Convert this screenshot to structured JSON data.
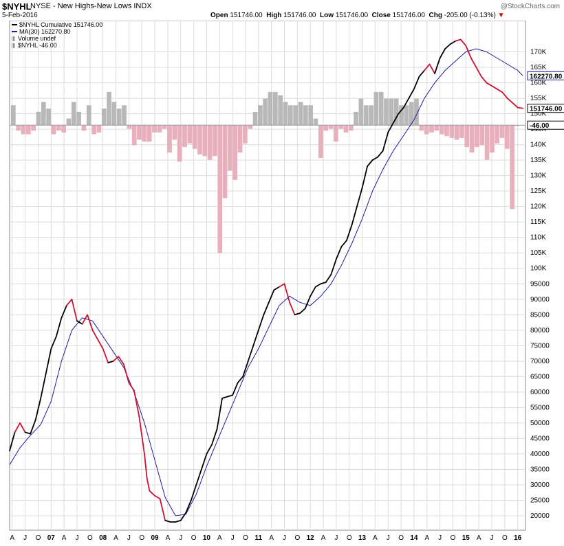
{
  "header": {
    "symbol": "$NYHL",
    "description": "NYSE - New Highs-New Lows INDX",
    "date": "5-Feb-2016",
    "open_label": "Open",
    "open": "151746.00",
    "high_label": "High",
    "high": "151746.00",
    "low_label": "Low",
    "low": "151746.00",
    "close_label": "Close",
    "close": "151746.00",
    "chg_label": "Chg",
    "chg": "-205.00 (-0.13%)",
    "chg_arrow": "▼",
    "brand": "@StockCharts.com"
  },
  "legend": {
    "cumulative": "$NYHL Cumulative 151746.00",
    "ma": "MA(30) 162270.80",
    "volume": "Volume undef",
    "nyhl": "$NYHL -46.00"
  },
  "colors": {
    "up": "#000000",
    "down": "#cc1133",
    "ma": "#1a1aa0",
    "hist_pos": "#b8b8b8",
    "hist_neg": "#e8b0bc",
    "grid": "#dcdcdc"
  },
  "chart_data": {
    "type": "line",
    "xlabel": "",
    "ylabel": "",
    "ylim": [
      18000,
      177000
    ],
    "y_ticks": [
      20000,
      25000,
      30000,
      35000,
      40000,
      45000,
      50000,
      55000,
      60000,
      65000,
      70000,
      75000,
      80000,
      85000,
      90000,
      95000,
      100000,
      105000,
      110000,
      115000,
      120000,
      125000,
      130000,
      135000,
      140000,
      145000,
      150000,
      155000,
      160000,
      165000,
      170000
    ],
    "y_tick_labels": [
      "20000",
      "25000",
      "30000",
      "35000",
      "40000",
      "45000",
      "50000",
      "55000",
      "60000",
      "65000",
      "70000",
      "75000",
      "80000",
      "85000",
      "90000",
      "95000",
      "100K",
      "105K",
      "110K",
      "115K",
      "120K",
      "125K",
      "130K",
      "135K",
      "140K",
      "145K",
      "150K",
      "155K",
      "160K",
      "165K",
      "170K"
    ],
    "x_range": [
      2006.2,
      2016.15
    ],
    "x_ticks": [
      {
        "t": 2006.25,
        "label": "A"
      },
      {
        "t": 2006.5,
        "label": "J"
      },
      {
        "t": 2006.75,
        "label": "O"
      },
      {
        "t": 2007.0,
        "label": "07"
      },
      {
        "t": 2007.25,
        "label": "A"
      },
      {
        "t": 2007.5,
        "label": "J"
      },
      {
        "t": 2007.75,
        "label": "O"
      },
      {
        "t": 2008.0,
        "label": "08"
      },
      {
        "t": 2008.25,
        "label": "A"
      },
      {
        "t": 2008.5,
        "label": "J"
      },
      {
        "t": 2008.75,
        "label": "O"
      },
      {
        "t": 2009.0,
        "label": "09"
      },
      {
        "t": 2009.25,
        "label": "A"
      },
      {
        "t": 2009.5,
        "label": "J"
      },
      {
        "t": 2009.75,
        "label": "O"
      },
      {
        "t": 2010.0,
        "label": "10"
      },
      {
        "t": 2010.25,
        "label": "A"
      },
      {
        "t": 2010.5,
        "label": "J"
      },
      {
        "t": 2010.75,
        "label": "O"
      },
      {
        "t": 2011.0,
        "label": "11"
      },
      {
        "t": 2011.25,
        "label": "A"
      },
      {
        "t": 2011.5,
        "label": "J"
      },
      {
        "t": 2011.75,
        "label": "O"
      },
      {
        "t": 2012.0,
        "label": "12"
      },
      {
        "t": 2012.25,
        "label": "A"
      },
      {
        "t": 2012.5,
        "label": "J"
      },
      {
        "t": 2012.75,
        "label": "O"
      },
      {
        "t": 2013.0,
        "label": "13"
      },
      {
        "t": 2013.25,
        "label": "A"
      },
      {
        "t": 2013.5,
        "label": "J"
      },
      {
        "t": 2013.75,
        "label": "O"
      },
      {
        "t": 2014.0,
        "label": "14"
      },
      {
        "t": 2014.25,
        "label": "A"
      },
      {
        "t": 2014.5,
        "label": "J"
      },
      {
        "t": 2014.75,
        "label": "O"
      },
      {
        "t": 2015.0,
        "label": "15"
      },
      {
        "t": 2015.25,
        "label": "A"
      },
      {
        "t": 2015.5,
        "label": "J"
      },
      {
        "t": 2015.75,
        "label": "O"
      },
      {
        "t": 2016.0,
        "label": "16"
      }
    ],
    "series": [
      {
        "name": "$NYHL Cumulative",
        "points": [
          [
            2006.2,
            41000,
            "u"
          ],
          [
            2006.3,
            47000,
            "u"
          ],
          [
            2006.4,
            50000,
            "d"
          ],
          [
            2006.5,
            47000,
            "d"
          ],
          [
            2006.6,
            46500,
            "u"
          ],
          [
            2006.7,
            51000,
            "u"
          ],
          [
            2006.8,
            58000,
            "u"
          ],
          [
            2006.9,
            66000,
            "u"
          ],
          [
            2007.0,
            74000,
            "u"
          ],
          [
            2007.1,
            78000,
            "u"
          ],
          [
            2007.2,
            84000,
            "u"
          ],
          [
            2007.3,
            88000,
            "u"
          ],
          [
            2007.4,
            90000,
            "d"
          ],
          [
            2007.5,
            83000,
            "d"
          ],
          [
            2007.6,
            82000,
            "u"
          ],
          [
            2007.7,
            85000,
            "d"
          ],
          [
            2007.8,
            80000,
            "d"
          ],
          [
            2007.9,
            77000,
            "d"
          ],
          [
            2008.0,
            74000,
            "d"
          ],
          [
            2008.1,
            69500,
            "d"
          ],
          [
            2008.2,
            70000,
            "u"
          ],
          [
            2008.3,
            71500,
            "d"
          ],
          [
            2008.4,
            69000,
            "d"
          ],
          [
            2008.5,
            63000,
            "d"
          ],
          [
            2008.6,
            60500,
            "d"
          ],
          [
            2008.7,
            52000,
            "d"
          ],
          [
            2008.8,
            40000,
            "d"
          ],
          [
            2008.85,
            32000,
            "d"
          ],
          [
            2008.9,
            28000,
            "d"
          ],
          [
            2009.0,
            26500,
            "d"
          ],
          [
            2009.1,
            25500,
            "d"
          ],
          [
            2009.2,
            18500,
            "d"
          ],
          [
            2009.3,
            18000,
            "u"
          ],
          [
            2009.4,
            18000,
            "u"
          ],
          [
            2009.5,
            18500,
            "u"
          ],
          [
            2009.6,
            21000,
            "u"
          ],
          [
            2009.7,
            25000,
            "u"
          ],
          [
            2009.8,
            30000,
            "u"
          ],
          [
            2009.9,
            35000,
            "u"
          ],
          [
            2010.0,
            40000,
            "u"
          ],
          [
            2010.1,
            43000,
            "u"
          ],
          [
            2010.2,
            48000,
            "u"
          ],
          [
            2010.3,
            58000,
            "u"
          ],
          [
            2010.4,
            58500,
            "u"
          ],
          [
            2010.5,
            59000,
            "u"
          ],
          [
            2010.6,
            63000,
            "u"
          ],
          [
            2010.7,
            65000,
            "u"
          ],
          [
            2010.8,
            70000,
            "u"
          ],
          [
            2010.9,
            75000,
            "u"
          ],
          [
            2011.0,
            80000,
            "u"
          ],
          [
            2011.1,
            85000,
            "u"
          ],
          [
            2011.2,
            89000,
            "u"
          ],
          [
            2011.3,
            93000,
            "u"
          ],
          [
            2011.4,
            94000,
            "u"
          ],
          [
            2011.5,
            95000,
            "d"
          ],
          [
            2011.6,
            89000,
            "d"
          ],
          [
            2011.7,
            85000,
            "d"
          ],
          [
            2011.8,
            85500,
            "u"
          ],
          [
            2011.9,
            87000,
            "u"
          ],
          [
            2012.0,
            91000,
            "u"
          ],
          [
            2012.1,
            94000,
            "u"
          ],
          [
            2012.2,
            95000,
            "u"
          ],
          [
            2012.3,
            95500,
            "u"
          ],
          [
            2012.4,
            98000,
            "u"
          ],
          [
            2012.5,
            103000,
            "u"
          ],
          [
            2012.6,
            107000,
            "u"
          ],
          [
            2012.7,
            109000,
            "u"
          ],
          [
            2012.8,
            114000,
            "u"
          ],
          [
            2012.9,
            120000,
            "u"
          ],
          [
            2013.0,
            126000,
            "u"
          ],
          [
            2013.1,
            133000,
            "u"
          ],
          [
            2013.2,
            135000,
            "u"
          ],
          [
            2013.3,
            136000,
            "u"
          ],
          [
            2013.4,
            138000,
            "u"
          ],
          [
            2013.5,
            144000,
            "u"
          ],
          [
            2013.6,
            147000,
            "u"
          ],
          [
            2013.7,
            150000,
            "u"
          ],
          [
            2013.8,
            152000,
            "u"
          ],
          [
            2013.9,
            155000,
            "u"
          ],
          [
            2014.0,
            158000,
            "u"
          ],
          [
            2014.1,
            162000,
            "u"
          ],
          [
            2014.2,
            164000,
            "u"
          ],
          [
            2014.3,
            166000,
            "d"
          ],
          [
            2014.4,
            163000,
            "d"
          ],
          [
            2014.5,
            168000,
            "u"
          ],
          [
            2014.6,
            171000,
            "u"
          ],
          [
            2014.7,
            172500,
            "u"
          ],
          [
            2014.8,
            173500,
            "u"
          ],
          [
            2014.9,
            174000,
            "d"
          ],
          [
            2015.0,
            172000,
            "d"
          ],
          [
            2015.1,
            168000,
            "d"
          ],
          [
            2015.2,
            165000,
            "d"
          ],
          [
            2015.3,
            162000,
            "d"
          ],
          [
            2015.4,
            160000,
            "d"
          ],
          [
            2015.5,
            159000,
            "d"
          ],
          [
            2015.6,
            158000,
            "d"
          ],
          [
            2015.7,
            157000,
            "d"
          ],
          [
            2015.8,
            155000,
            "d"
          ],
          [
            2015.9,
            153500,
            "d"
          ],
          [
            2016.0,
            152000,
            "d"
          ],
          [
            2016.1,
            151746,
            "d"
          ]
        ]
      },
      {
        "name": "MA(30)",
        "points": [
          [
            2006.2,
            36500
          ],
          [
            2006.4,
            42000
          ],
          [
            2006.6,
            46000
          ],
          [
            2006.8,
            49500
          ],
          [
            2007.0,
            57000
          ],
          [
            2007.2,
            70000
          ],
          [
            2007.4,
            80000
          ],
          [
            2007.6,
            84000
          ],
          [
            2007.8,
            83000
          ],
          [
            2008.0,
            78000
          ],
          [
            2008.2,
            73000
          ],
          [
            2008.4,
            68000
          ],
          [
            2008.6,
            60000
          ],
          [
            2008.8,
            50000
          ],
          [
            2009.0,
            38000
          ],
          [
            2009.2,
            26000
          ],
          [
            2009.4,
            20000
          ],
          [
            2009.6,
            20500
          ],
          [
            2009.8,
            27000
          ],
          [
            2010.0,
            36000
          ],
          [
            2010.2,
            44000
          ],
          [
            2010.4,
            52000
          ],
          [
            2010.6,
            60000
          ],
          [
            2010.8,
            68000
          ],
          [
            2011.0,
            74000
          ],
          [
            2011.2,
            81000
          ],
          [
            2011.4,
            88000
          ],
          [
            2011.6,
            91000
          ],
          [
            2011.8,
            89000
          ],
          [
            2012.0,
            88000
          ],
          [
            2012.2,
            91000
          ],
          [
            2012.4,
            95000
          ],
          [
            2012.6,
            101000
          ],
          [
            2012.8,
            108000
          ],
          [
            2013.0,
            116000
          ],
          [
            2013.2,
            125000
          ],
          [
            2013.4,
            132000
          ],
          [
            2013.6,
            138000
          ],
          [
            2013.8,
            143000
          ],
          [
            2014.0,
            148000
          ],
          [
            2014.2,
            155000
          ],
          [
            2014.4,
            160000
          ],
          [
            2014.6,
            164000
          ],
          [
            2014.8,
            167000
          ],
          [
            2015.0,
            170000
          ],
          [
            2015.2,
            171000
          ],
          [
            2015.4,
            170000
          ],
          [
            2015.6,
            168000
          ],
          [
            2015.8,
            166000
          ],
          [
            2016.0,
            164000
          ],
          [
            2016.1,
            162270.8
          ]
        ]
      },
      {
        "name": "$NYHL",
        "values": [
          300,
          -300,
          -500,
          -500,
          -300,
          200,
          350,
          250,
          -500,
          -300,
          -400,
          100,
          350,
          200,
          -300,
          300,
          -500,
          -400,
          250,
          500,
          350,
          250,
          300,
          -200,
          -1100,
          -800,
          -900,
          -900,
          -400,
          -400,
          -200,
          -1500,
          -800,
          -2000,
          -1200,
          -1000,
          -1300,
          -1600,
          -1700,
          -1900,
          -1700,
          -7000,
          -4000,
          -2500,
          -3000,
          -1500,
          -1000,
          -200,
          200,
          300,
          400,
          500,
          500,
          450,
          350,
          300,
          300,
          350,
          300,
          300,
          100,
          -1800,
          -300,
          -200,
          -900,
          -200,
          -400,
          -300,
          200,
          400,
          300,
          300,
          500,
          500,
          400,
          400,
          400,
          300,
          300,
          350,
          400,
          -300,
          -500,
          -400,
          -300,
          -500,
          -600,
          -700,
          -800,
          -700,
          -1200,
          -1500,
          -1200,
          -1100,
          -1900,
          -1500,
          -1000,
          -700,
          -1300,
          -4600,
          -46
        ],
        "ylim": [
          -8000,
          1200
        ]
      }
    ]
  }
}
